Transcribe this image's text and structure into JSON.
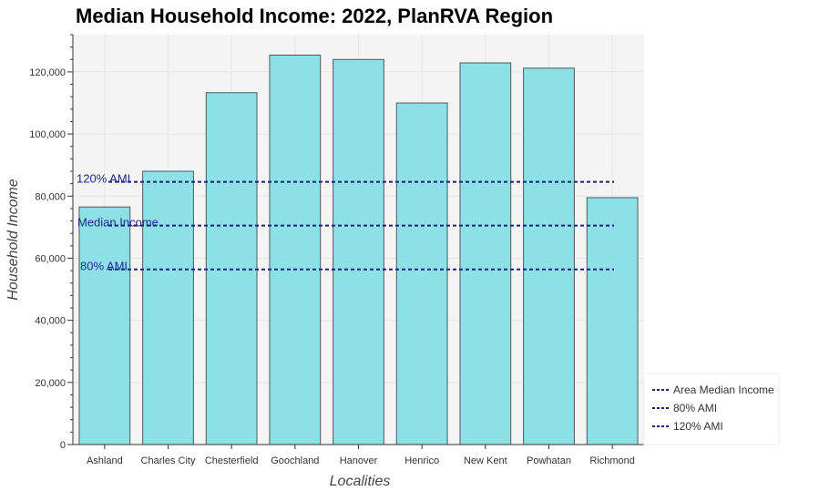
{
  "chart_data": {
    "type": "bar",
    "title": "Median Household Income: 2022, PlanRVA Region",
    "xlabel": "Localities",
    "ylabel": "Household Income",
    "categories": [
      "Ashland",
      "Charles City",
      "Chesterfield",
      "Goochland",
      "Hanover",
      "Henrico",
      "New Kent",
      "Powhatan",
      "Richmond"
    ],
    "values": [
      76500,
      88000,
      113300,
      125400,
      124000,
      110000,
      122900,
      121200,
      79500
    ],
    "ylim": [
      0,
      132000
    ],
    "yticks": [
      0,
      20000,
      40000,
      60000,
      80000,
      100000,
      120000
    ],
    "ytick_labels": [
      "0",
      "20,000",
      "40,000",
      "60,000",
      "80,000",
      "100,000",
      "120,000"
    ],
    "grid": true,
    "bar_color": "#8de1e6",
    "bar_edge_color": "#4d5a5c",
    "plot_background": "#f4f4f4",
    "reference_lines": [
      {
        "key": "ami120",
        "label": "120% AMI",
        "value": 84600,
        "color": "#1a237e"
      },
      {
        "key": "median",
        "label": "Median Income",
        "value": 70500,
        "color": "#1a237e"
      },
      {
        "key": "ami80",
        "label": "80% AMI",
        "value": 56400,
        "color": "#1a237e"
      }
    ],
    "legend": {
      "placement": "bottom-right",
      "entries": [
        "Area Median Income",
        "80% AMI",
        "120% AMI"
      ]
    }
  }
}
